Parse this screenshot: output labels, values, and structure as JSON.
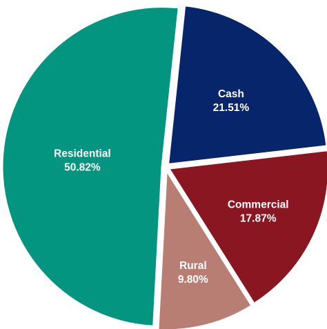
{
  "chart_data": {
    "type": "pie",
    "slices": [
      {
        "name": "Cash",
        "value": 21.51,
        "label": "21.51%",
        "color": "#06256a"
      },
      {
        "name": "Commercial",
        "value": 17.87,
        "label": "17.87%",
        "color": "#8a1622"
      },
      {
        "name": "Rural",
        "value": 9.8,
        "label": "9.80%",
        "color": "#b87e74"
      },
      {
        "name": "Residential",
        "value": 50.82,
        "label": "50.82%",
        "color": "#03957f"
      }
    ],
    "start_angle_deg": 84,
    "direction": "clockwise",
    "slice_separator_color": "#ffffff",
    "legend": "none",
    "title": ""
  }
}
